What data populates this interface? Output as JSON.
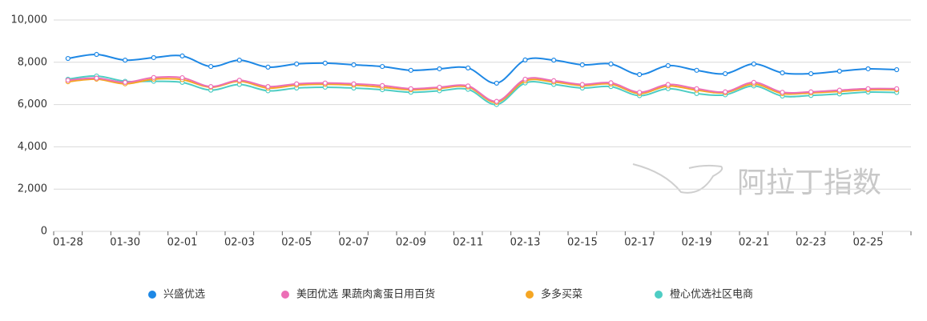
{
  "chart_data": {
    "type": "line",
    "watermark": "阿拉丁指数",
    "categories": [
      "01-28",
      null,
      "01-30",
      null,
      "02-01",
      null,
      "02-03",
      null,
      "02-05",
      null,
      "02-07",
      null,
      "02-09",
      null,
      "02-11",
      null,
      "02-13",
      null,
      "02-15",
      null,
      "02-17",
      null,
      "02-19",
      null,
      "02-21",
      null,
      "02-23",
      null,
      "02-25",
      null
    ],
    "series": [
      {
        "name": "兴盛优选",
        "color": "#1e88e5",
        "values": [
          8180,
          8370,
          8100,
          8220,
          8300,
          7800,
          8100,
          7770,
          7920,
          7960,
          7880,
          7800,
          7620,
          7690,
          7730,
          7010,
          8110,
          8100,
          7880,
          7920,
          7420,
          7840,
          7620,
          7460,
          7920,
          7500,
          7460,
          7580,
          7690,
          7650
        ]
      },
      {
        "name": "美团优选 果蔬肉禽蛋日用百货",
        "color": "#ec6fb6",
        "values": [
          7150,
          7250,
          7050,
          7280,
          7270,
          6850,
          7150,
          6850,
          6980,
          7020,
          6980,
          6900,
          6750,
          6820,
          6880,
          6150,
          7200,
          7130,
          6950,
          7030,
          6580,
          6950,
          6750,
          6600,
          7050,
          6580,
          6600,
          6680,
          6750,
          6750
        ]
      },
      {
        "name": "多多买菜",
        "color": "#f5a623",
        "values": [
          7080,
          7200,
          6980,
          7200,
          7180,
          6820,
          7100,
          6780,
          6920,
          6960,
          6920,
          6820,
          6700,
          6770,
          6830,
          6100,
          7120,
          7070,
          6900,
          6970,
          6520,
          6880,
          6680,
          6560,
          6970,
          6520,
          6550,
          6620,
          6700,
          6700
        ]
      },
      {
        "name": "橙心优选社区电商",
        "color": "#4ecdc4",
        "values": [
          7200,
          7350,
          7100,
          7100,
          7050,
          6680,
          6950,
          6650,
          6780,
          6820,
          6780,
          6700,
          6580,
          6650,
          6720,
          6000,
          7020,
          6950,
          6780,
          6850,
          6420,
          6750,
          6520,
          6460,
          6880,
          6400,
          6430,
          6500,
          6590,
          6570
        ]
      }
    ],
    "ylim": [
      0,
      10000
    ],
    "yticks": [
      0,
      {
        "value": 2000,
        "label": "2,000"
      },
      {
        "value": 4000,
        "label": "4,000"
      },
      {
        "value": 6000,
        "label": "6,000"
      },
      {
        "value": 8000,
        "label": "8,000"
      },
      {
        "value": 10000,
        "label": "10,000"
      }
    ],
    "grid": true
  }
}
